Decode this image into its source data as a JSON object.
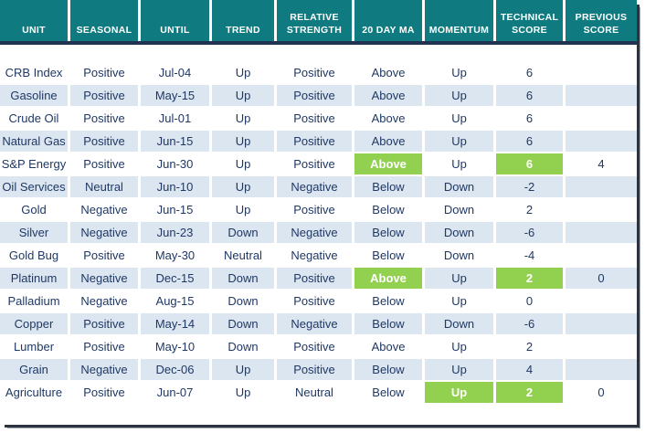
{
  "styles": {
    "header_bg": "#0F7B80",
    "header_text": "#FFFFFF",
    "row_bg": "#FFFFFF",
    "row_alt_bg": "#DCE6F1",
    "text": "#1F3864",
    "highlight_bg": "#92D050",
    "highlight_text": "#FFFFFF",
    "divider": "#1F3352"
  },
  "chart_data": {
    "type": "table",
    "columns": [
      "UNIT",
      "SEASONAL",
      "UNTIL",
      "TREND",
      "RELATIVE STRENGTH",
      "20 DAY MA",
      "MOMENTUM",
      "TECHNICAL SCORE",
      "PREVIOUS SCORE"
    ],
    "column_keys": [
      "unit",
      "seasonal",
      "until",
      "trend",
      "relative_strength",
      "ma_20day",
      "momentum",
      "technical_score",
      "previous_score"
    ],
    "highlight_color": "#92D050",
    "rows": [
      {
        "unit": "CRB Index",
        "seasonal": "Positive",
        "until": "Jul-04",
        "trend": "Up",
        "relative_strength": "Positive",
        "ma_20day": "Above",
        "momentum": "Up",
        "technical_score": 6,
        "previous_score": "",
        "highlights": []
      },
      {
        "unit": "Gasoline",
        "seasonal": "Positive",
        "until": "May-15",
        "trend": "Up",
        "relative_strength": "Positive",
        "ma_20day": "Above",
        "momentum": "Up",
        "technical_score": 6,
        "previous_score": "",
        "highlights": []
      },
      {
        "unit": "Crude Oil",
        "seasonal": "Positive",
        "until": "Jul-01",
        "trend": "Up",
        "relative_strength": "Positive",
        "ma_20day": "Above",
        "momentum": "Up",
        "technical_score": 6,
        "previous_score": "",
        "highlights": []
      },
      {
        "unit": "Natural Gas",
        "seasonal": "Positive",
        "until": "Jun-15",
        "trend": "Up",
        "relative_strength": "Positive",
        "ma_20day": "Above",
        "momentum": "Up",
        "technical_score": 6,
        "previous_score": "",
        "highlights": []
      },
      {
        "unit": "S&P Energy",
        "seasonal": "Positive",
        "until": "Jun-30",
        "trend": "Up",
        "relative_strength": "Positive",
        "ma_20day": "Above",
        "momentum": "Up",
        "technical_score": 6,
        "previous_score": 4,
        "highlights": [
          "ma_20day",
          "technical_score"
        ]
      },
      {
        "unit": "Oil Services",
        "seasonal": "Neutral",
        "until": "Jun-10",
        "trend": "Up",
        "relative_strength": "Negative",
        "ma_20day": "Below",
        "momentum": "Down",
        "technical_score": -2,
        "previous_score": "",
        "highlights": []
      },
      {
        "unit": "Gold",
        "seasonal": "Negative",
        "until": "Jun-15",
        "trend": "Up",
        "relative_strength": "Positive",
        "ma_20day": "Below",
        "momentum": "Down",
        "technical_score": 2,
        "previous_score": "",
        "highlights": []
      },
      {
        "unit": "Silver",
        "seasonal": "Negative",
        "until": "Jun-23",
        "trend": "Down",
        "relative_strength": "Negative",
        "ma_20day": "Below",
        "momentum": "Down",
        "technical_score": -6,
        "previous_score": "",
        "highlights": []
      },
      {
        "unit": "Gold Bug",
        "seasonal": "Positive",
        "until": "May-30",
        "trend": "Neutral",
        "relative_strength": "Negative",
        "ma_20day": "Below",
        "momentum": "Down",
        "technical_score": -4,
        "previous_score": "",
        "highlights": []
      },
      {
        "unit": "Platinum",
        "seasonal": "Negative",
        "until": "Dec-15",
        "trend": "Down",
        "relative_strength": "Positive",
        "ma_20day": "Above",
        "momentum": "Up",
        "technical_score": 2,
        "previous_score": 0,
        "highlights": [
          "ma_20day",
          "technical_score"
        ]
      },
      {
        "unit": "Palladium",
        "seasonal": "Negative",
        "until": "Aug-15",
        "trend": "Down",
        "relative_strength": "Positive",
        "ma_20day": "Below",
        "momentum": "Up",
        "technical_score": 0,
        "previous_score": "",
        "highlights": []
      },
      {
        "unit": "Copper",
        "seasonal": "Positive",
        "until": "May-14",
        "trend": "Down",
        "relative_strength": "Negative",
        "ma_20day": "Below",
        "momentum": "Down",
        "technical_score": -6,
        "previous_score": "",
        "highlights": []
      },
      {
        "unit": "Lumber",
        "seasonal": "Positive",
        "until": "May-10",
        "trend": "Down",
        "relative_strength": "Positive",
        "ma_20day": "Above",
        "momentum": "Up",
        "technical_score": 2,
        "previous_score": "",
        "highlights": []
      },
      {
        "unit": "Grain",
        "seasonal": "Negative",
        "until": "Dec-06",
        "trend": "Up",
        "relative_strength": "Positive",
        "ma_20day": "Below",
        "momentum": "Up",
        "technical_score": 4,
        "previous_score": "",
        "highlights": []
      },
      {
        "unit": "Agriculture",
        "seasonal": "Positive",
        "until": "Jun-07",
        "trend": "Up",
        "relative_strength": "Neutral",
        "ma_20day": "Below",
        "momentum": "Up",
        "technical_score": 2,
        "previous_score": 0,
        "highlights": [
          "momentum",
          "technical_score"
        ]
      }
    ]
  }
}
